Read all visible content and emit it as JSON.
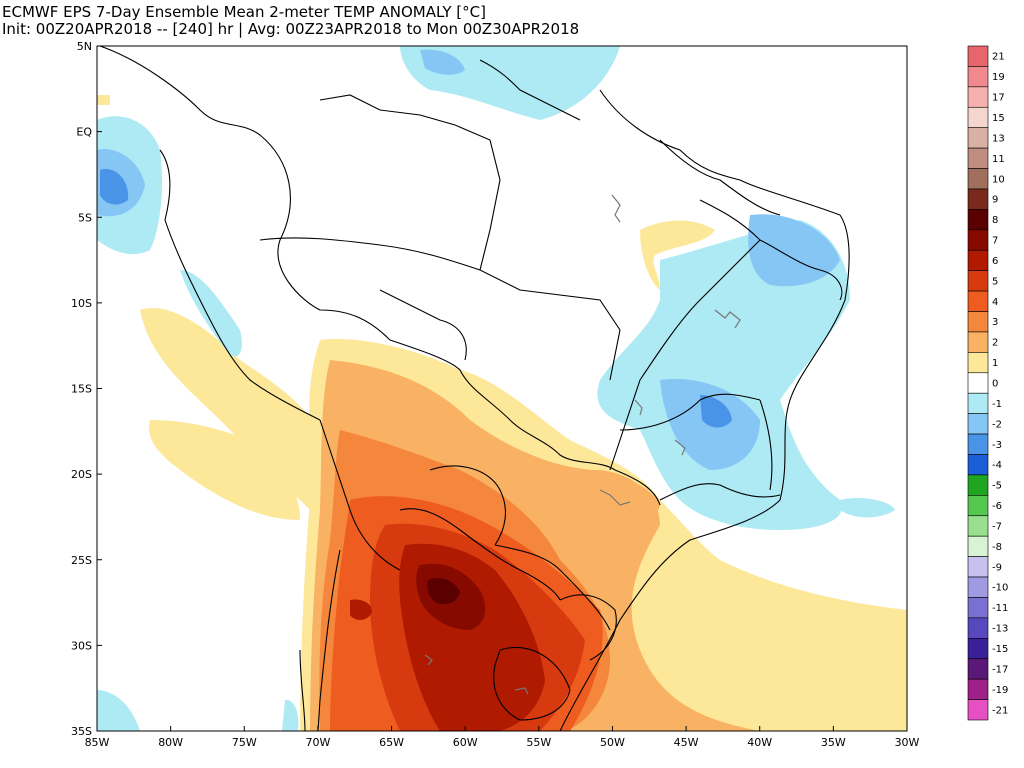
{
  "title": {
    "line1": "ECMWF EPS 7-Day Ensemble Mean 2-meter TEMP ANOMALY [°C]",
    "line2": "Init: 00Z20APR2018 -- [240] hr | Avg: 00Z23APR2018 to Mon 00Z30APR2018"
  },
  "lat_labels": [
    "5N",
    "EQ",
    "5S",
    "10S",
    "15S",
    "20S",
    "25S",
    "30S",
    "35S"
  ],
  "lon_labels": [
    "85W",
    "80W",
    "75W",
    "70W",
    "65W",
    "60W",
    "55W",
    "50W",
    "45W",
    "40W",
    "35W",
    "30W"
  ],
  "colorbar": [
    {
      "label": "21",
      "color": "#e8666b"
    },
    {
      "label": "19",
      "color": "#f08a8e"
    },
    {
      "label": "17",
      "color": "#f6b0ae"
    },
    {
      "label": "15",
      "color": "#f5d6cf"
    },
    {
      "label": "13",
      "color": "#d8b0a4"
    },
    {
      "label": "11",
      "color": "#bf8e80"
    },
    {
      "label": "10",
      "color": "#a06f5e"
    },
    {
      "label": "9",
      "color": "#7a2a1c"
    },
    {
      "label": "8",
      "color": "#5a0000"
    },
    {
      "label": "7",
      "color": "#860a00"
    },
    {
      "label": "6",
      "color": "#b01a00"
    },
    {
      "label": "5",
      "color": "#d83a10"
    },
    {
      "label": "4",
      "color": "#ef5c20"
    },
    {
      "label": "3",
      "color": "#f5873c"
    },
    {
      "label": "2",
      "color": "#f9b264"
    },
    {
      "label": "1",
      "color": "#fde89a"
    },
    {
      "label": "0",
      "color": "#ffffff"
    },
    {
      "label": "-1",
      "color": "#aeeaf4"
    },
    {
      "label": "-2",
      "color": "#86c6f4"
    },
    {
      "label": "-3",
      "color": "#4a94e8"
    },
    {
      "label": "-4",
      "color": "#1a5ed8"
    },
    {
      "label": "-5",
      "color": "#1fa520"
    },
    {
      "label": "-6",
      "color": "#56c850"
    },
    {
      "label": "-7",
      "color": "#98e090"
    },
    {
      "label": "-8",
      "color": "#d8f2d4"
    },
    {
      "label": "-9",
      "color": "#c8c0ee"
    },
    {
      "label": "-10",
      "color": "#a09ae2"
    },
    {
      "label": "-11",
      "color": "#7a70d2"
    },
    {
      "label": "-13",
      "color": "#5848c0"
    },
    {
      "label": "-15",
      "color": "#3a2098"
    },
    {
      "label": "-17",
      "color": "#5a1878"
    },
    {
      "label": "-19",
      "color": "#a0208a"
    },
    {
      "label": "-21",
      "color": "#e650c2"
    }
  ]
}
